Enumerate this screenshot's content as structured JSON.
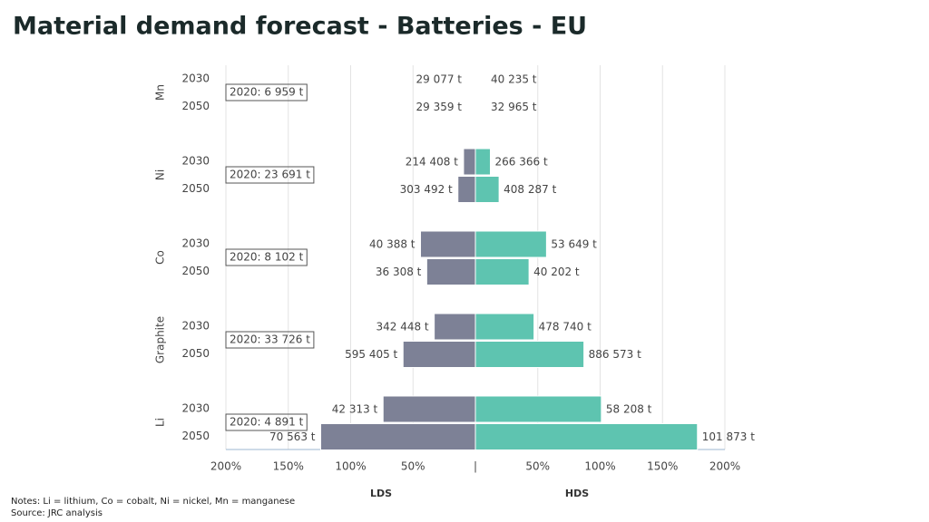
{
  "chart_data": {
    "type": "butterfly",
    "title": "Material demand forecast - Batteries - EU",
    "groups": [
      {
        "name": "Mn",
        "years": [
          "2030",
          "2050"
        ],
        "baseline": "2020:  6 959 t"
      },
      {
        "name": "Ni",
        "years": [
          "2030",
          "2050"
        ],
        "baseline": "2020:  23 691 t"
      },
      {
        "name": "Co",
        "years": [
          "2030",
          "2050"
        ],
        "baseline": "2020:  8 102 t"
      },
      {
        "name": "Graphite",
        "years": [
          "2030",
          "2050"
        ],
        "baseline": "2020:  33 726 t"
      },
      {
        "name": "Li",
        "years": [
          "2030",
          "2050"
        ],
        "baseline": "2020:  4 891 t"
      }
    ],
    "series": [
      {
        "name": "LDS",
        "color": "#7d8196",
        "side": "left",
        "values": [
          0,
          0,
          9.5,
          14,
          44,
          39,
          33,
          58,
          74,
          124
        ],
        "value_labels": [
          "29 077 t",
          "29 359 t",
          "214 408 t",
          "303 492 t",
          "40 388 t",
          "36 308 t",
          "342 448 t",
          "595 405 t",
          "42 313 t",
          "70 563 t"
        ]
      },
      {
        "name": "HDS",
        "color": "#5ec4b0",
        "side": "right",
        "values": [
          0,
          0,
          12,
          19,
          57,
          43,
          47,
          87,
          101,
          178
        ],
        "value_labels": [
          "40 235 t",
          "32 965 t",
          "266 366 t",
          "408 287 t",
          "53 649 t",
          "40 202 t",
          "478 740 t",
          "886 573 t",
          "58 208 t",
          "101 873 t"
        ]
      }
    ],
    "xlim": [
      0,
      200
    ],
    "xticks_left": [
      {
        "value": 200,
        "label": "200%"
      },
      {
        "value": 150,
        "label": "150%"
      },
      {
        "value": 100,
        "label": "100%"
      },
      {
        "value": 50,
        "label": "50%"
      }
    ],
    "zero_tick": {
      "value": 0,
      "label": "|"
    },
    "xticks_right": [
      {
        "value": 50,
        "label": "50%"
      },
      {
        "value": 100,
        "label": "100%"
      },
      {
        "value": 150,
        "label": "150%"
      },
      {
        "value": 200,
        "label": "200%"
      }
    ],
    "grid": true,
    "notes": "Notes: Li = lithium, Co = cobalt, Ni = nickel, Mn = manganese",
    "source": "Source: JRC analysis"
  }
}
